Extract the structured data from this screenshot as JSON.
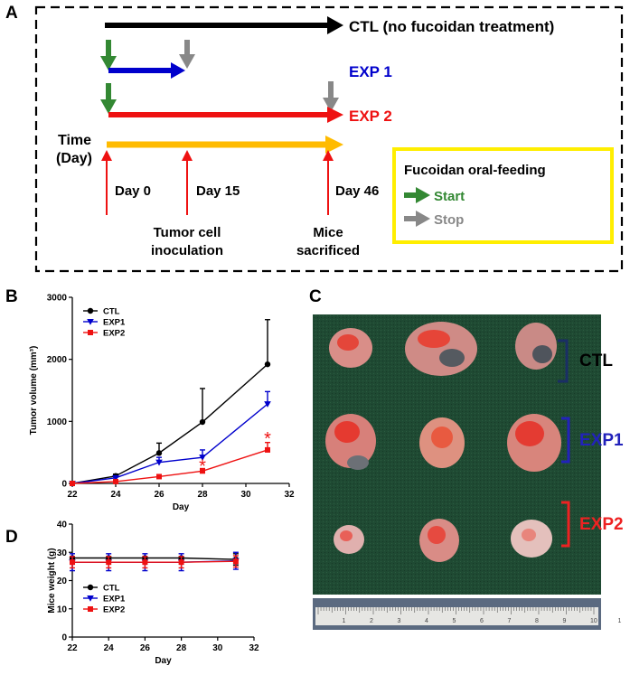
{
  "colors": {
    "ctl": "#000000",
    "exp1": "#0000cc",
    "exp2": "#ee1111",
    "timeline": "#ffbb00",
    "start": "#338833",
    "stop": "#888888",
    "legend_border": "#ffee00",
    "bracket_ctl": "#1a2e66",
    "bracket_exp1": "#2222bb",
    "bracket_exp2": "#ee2222"
  },
  "panel_a": {
    "letter": "A",
    "ctl_label": "CTL (no fucoidan treatment)",
    "exp1_label": "EXP 1",
    "exp2_label": "EXP 2",
    "time_label_1": "Time",
    "time_label_2": "(Day)",
    "day0": "Day 0",
    "day15": "Day 15",
    "day46": "Day 46",
    "tumor_1": "Tumor cell",
    "tumor_2": "inoculation",
    "mice_1": "Mice",
    "mice_2": "sacrificed",
    "legend_title": "Fucoidan oral-feeding",
    "legend_start": "Start",
    "legend_stop": "Stop"
  },
  "panel_c": {
    "letter": "C",
    "ctl": "CTL",
    "exp1": "EXP1",
    "exp2": "EXP2",
    "ruler_numbers": [
      "1",
      "2",
      "3",
      "4",
      "5",
      "6",
      "7",
      "8",
      "9",
      "10",
      "1"
    ]
  },
  "chart_data": [
    {
      "panel": "B",
      "type": "line",
      "xlabel": "Day",
      "ylabel": "Tumor volume (mm³)",
      "xlim": [
        22,
        32
      ],
      "ylim": [
        0,
        3000
      ],
      "xticks": [
        "22",
        "24",
        "26",
        "28",
        "30",
        "32"
      ],
      "yticks": [
        "0",
        "1000",
        "2000",
        "3000"
      ],
      "legend": "top-left",
      "series": [
        {
          "name": "CTL",
          "marker": "circle",
          "x": [
            22,
            24,
            26,
            28,
            31
          ],
          "y": [
            0,
            120,
            490,
            990,
            1920
          ],
          "err": [
            0,
            30,
            160,
            540,
            720
          ]
        },
        {
          "name": "EXP1",
          "marker": "triangle-down",
          "x": [
            22,
            24,
            26,
            28,
            31
          ],
          "y": [
            0,
            90,
            340,
            420,
            1280
          ],
          "err": [
            0,
            20,
            80,
            120,
            200
          ]
        },
        {
          "name": "EXP2",
          "marker": "square",
          "x": [
            22,
            24,
            26,
            28,
            31
          ],
          "y": [
            0,
            30,
            110,
            200,
            540
          ],
          "err": [
            0,
            10,
            30,
            40,
            120
          ]
        }
      ],
      "annotations": [
        {
          "text": "*",
          "x": 28,
          "y": 310
        },
        {
          "text": "*",
          "x": 31,
          "y": 760
        }
      ]
    },
    {
      "panel": "D",
      "type": "line",
      "xlabel": "Day",
      "ylabel": "Mice weight (g)",
      "xlim": [
        22,
        32
      ],
      "ylim": [
        0,
        40
      ],
      "xticks": [
        "22",
        "24",
        "26",
        "28",
        "30",
        "32"
      ],
      "yticks": [
        "0",
        "10",
        "20",
        "30",
        "40"
      ],
      "legend": "bottom-left",
      "series": [
        {
          "name": "CTL",
          "marker": "circle",
          "x": [
            22,
            24,
            26,
            28,
            31
          ],
          "y": [
            28,
            28,
            28,
            28,
            27.5
          ],
          "err": [
            0.5,
            0.5,
            0.5,
            0.5,
            2
          ]
        },
        {
          "name": "EXP1",
          "marker": "triangle-down",
          "x": [
            22,
            24,
            26,
            28,
            31
          ],
          "y": [
            26.5,
            26.5,
            26.5,
            26.5,
            27
          ],
          "err": [
            3,
            3,
            3,
            3,
            3
          ]
        },
        {
          "name": "EXP2",
          "marker": "square",
          "x": [
            22,
            24,
            26,
            28,
            31
          ],
          "y": [
            26.5,
            26.5,
            26.5,
            26.5,
            26.8
          ],
          "err": [
            2,
            2,
            2,
            2,
            2
          ]
        }
      ]
    }
  ]
}
